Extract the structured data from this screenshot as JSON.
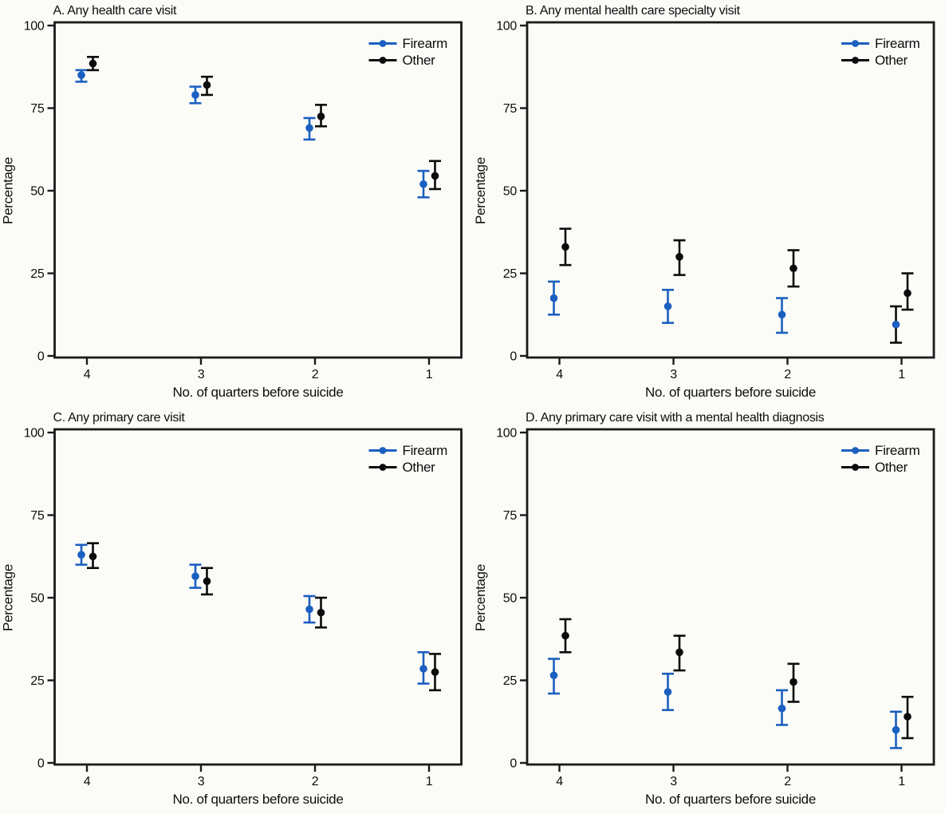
{
  "figure": {
    "background": "#fbfbf8",
    "axis_color": "#1a1a1a",
    "series_colors": {
      "firearm": "#1b5fc0",
      "other": "#0b0b0b"
    },
    "marker": "filled-circle-with-capped-error-bars",
    "legend_position": "top-right-inside"
  },
  "chart_data": [
    {
      "panel": "A",
      "type": "scatter",
      "title": "A. Any health care visit",
      "xlabel": "No. of quarters before suicide",
      "ylabel": "Percentage",
      "ylim": [
        0,
        100
      ],
      "yticks": [
        0,
        25,
        50,
        75,
        100
      ],
      "categories": [
        "4",
        "3",
        "2",
        "1"
      ],
      "grid": false,
      "series": [
        {
          "name": "Firearm",
          "color": "#1b5fc0",
          "values": [
            85,
            79,
            69,
            52
          ],
          "ci_low": [
            83,
            76.5,
            65.5,
            48
          ],
          "ci_high": [
            86.5,
            81.5,
            72,
            56
          ]
        },
        {
          "name": "Other",
          "color": "#0b0b0b",
          "values": [
            88.5,
            82,
            72.5,
            54.5
          ],
          "ci_low": [
            86.5,
            79,
            69.5,
            50.5
          ],
          "ci_high": [
            90.5,
            84.5,
            76,
            59
          ]
        }
      ]
    },
    {
      "panel": "B",
      "type": "scatter",
      "title": "B. Any mental health care specialty visit",
      "xlabel": "No. of quarters before suicide",
      "ylabel": "Percentage",
      "ylim": [
        0,
        100
      ],
      "yticks": [
        0,
        25,
        50,
        75,
        100
      ],
      "categories": [
        "4",
        "3",
        "2",
        "1"
      ],
      "grid": false,
      "series": [
        {
          "name": "Firearm",
          "color": "#1b5fc0",
          "values": [
            17.5,
            15,
            12.5,
            9.5
          ],
          "ci_low": [
            12.5,
            10,
            7,
            4
          ],
          "ci_high": [
            22.5,
            20,
            17.5,
            15
          ],
          "bar_color_overrides": [
            null,
            null,
            null,
            "#0b0b0b"
          ]
        },
        {
          "name": "Other",
          "color": "#0b0b0b",
          "values": [
            33,
            30,
            26.5,
            19
          ],
          "ci_low": [
            27.5,
            24.5,
            21,
            14
          ],
          "ci_high": [
            38.5,
            35,
            32,
            25
          ]
        }
      ]
    },
    {
      "panel": "C",
      "type": "scatter",
      "title": "C. Any primary care visit",
      "xlabel": "No. of quarters before suicide",
      "ylabel": "Percentage",
      "ylim": [
        0,
        100
      ],
      "yticks": [
        0,
        25,
        50,
        75,
        100
      ],
      "categories": [
        "4",
        "3",
        "2",
        "1"
      ],
      "grid": false,
      "series": [
        {
          "name": "Firearm",
          "color": "#1b5fc0",
          "values": [
            63,
            56.5,
            46.5,
            28.5
          ],
          "ci_low": [
            60,
            53,
            42.5,
            24
          ],
          "ci_high": [
            66,
            60,
            50.5,
            33.5
          ]
        },
        {
          "name": "Other",
          "color": "#0b0b0b",
          "values": [
            62.5,
            55,
            45.5,
            27.5
          ],
          "ci_low": [
            59,
            51,
            41,
            22
          ],
          "ci_high": [
            66.5,
            59,
            50,
            33
          ]
        }
      ]
    },
    {
      "panel": "D",
      "type": "scatter",
      "title": "D. Any primary care visit with a mental health diagnosis",
      "xlabel": "No. of quarters before suicide",
      "ylabel": "Percentage",
      "ylim": [
        0,
        100
      ],
      "yticks": [
        0,
        25,
        50,
        75,
        100
      ],
      "categories": [
        "4",
        "3",
        "2",
        "1"
      ],
      "grid": false,
      "series": [
        {
          "name": "Firearm",
          "color": "#1b5fc0",
          "values": [
            26.5,
            21.5,
            16.5,
            10
          ],
          "ci_low": [
            21,
            16,
            11.5,
            4.5
          ],
          "ci_high": [
            31.5,
            27,
            22,
            15.5
          ]
        },
        {
          "name": "Other",
          "color": "#0b0b0b",
          "values": [
            38.5,
            33.5,
            24.5,
            14
          ],
          "ci_low": [
            33.5,
            28,
            18.5,
            7.5
          ],
          "ci_high": [
            43.5,
            38.5,
            30,
            20
          ]
        }
      ]
    }
  ]
}
